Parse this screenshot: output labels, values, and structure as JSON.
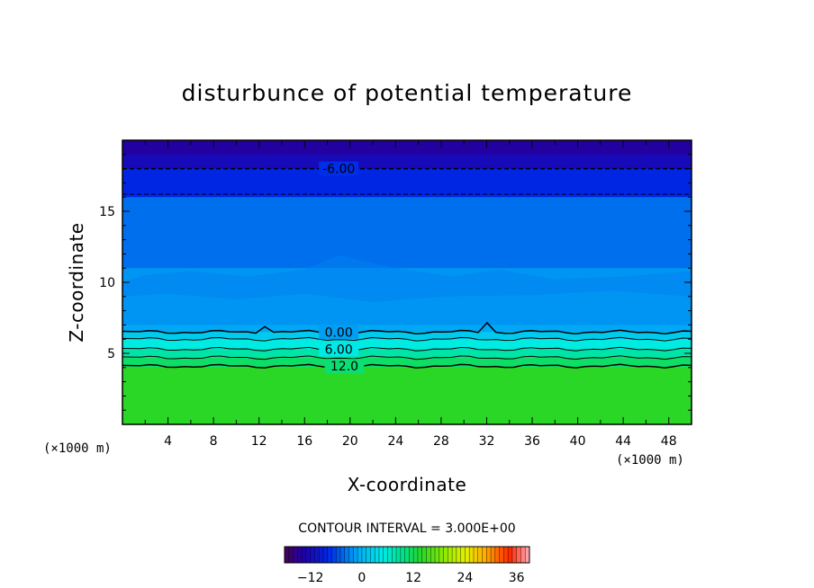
{
  "chart_data": {
    "type": "heatmap",
    "title": "disturbunce of potential temperature",
    "xlabel": "X-coordinate",
    "ylabel": "Z-coordinate",
    "x_unit": "(×1000 m)",
    "y_unit": "(×1000 m)",
    "xlim": [
      0,
      50
    ],
    "ylim": [
      0,
      20
    ],
    "x_ticks": [
      4,
      8,
      12,
      16,
      20,
      24,
      28,
      32,
      36,
      40,
      44,
      48
    ],
    "y_ticks": [
      5,
      10,
      15
    ],
    "contour_interval_label": "CONTOUR INTERVAL = 3.000E+00",
    "contour_interval": 3.0,
    "field_bands": [
      {
        "z": [
          19,
          20
        ],
        "value": -14
      },
      {
        "z": [
          18,
          19
        ],
        "value": -12
      },
      {
        "z": [
          16,
          18
        ],
        "value": -8
      },
      {
        "z": [
          11,
          16
        ],
        "value": -4
      },
      {
        "z": [
          7,
          11
        ],
        "value": -2
      },
      {
        "z": [
          6.5,
          7
        ],
        "value": -1
      },
      {
        "z": [
          6.0,
          6.5
        ],
        "value": 2
      },
      {
        "z": [
          5.3,
          6.0
        ],
        "value": 5
      },
      {
        "z": [
          4.7,
          5.3
        ],
        "value": 8
      },
      {
        "z": [
          4.0,
          4.7
        ],
        "value": 11
      },
      {
        "z": [
          0,
          4.0
        ],
        "value": 14
      }
    ],
    "contour_lines": [
      {
        "value": -6,
        "z": 18.0,
        "style": "dashed",
        "label": "-6.00"
      },
      {
        "value": -3,
        "z": 16.2,
        "style": "dashed",
        "label": ""
      },
      {
        "value": 0,
        "z": 6.5,
        "style": "solid",
        "label": "0.00"
      },
      {
        "value": 3,
        "z": 6.0,
        "style": "solid",
        "label": ""
      },
      {
        "value": 6,
        "z": 5.3,
        "style": "solid",
        "label": "6.00"
      },
      {
        "value": 9,
        "z": 4.7,
        "style": "solid",
        "label": ""
      },
      {
        "value": 12,
        "z": 4.1,
        "style": "solid",
        "label": "12.0"
      }
    ],
    "colorbar": {
      "range": [
        -18,
        39
      ],
      "ticks": [
        -12,
        0,
        12,
        24,
        36
      ],
      "tick_labels": [
        "−12",
        "0",
        "12",
        "24",
        "36"
      ]
    }
  }
}
